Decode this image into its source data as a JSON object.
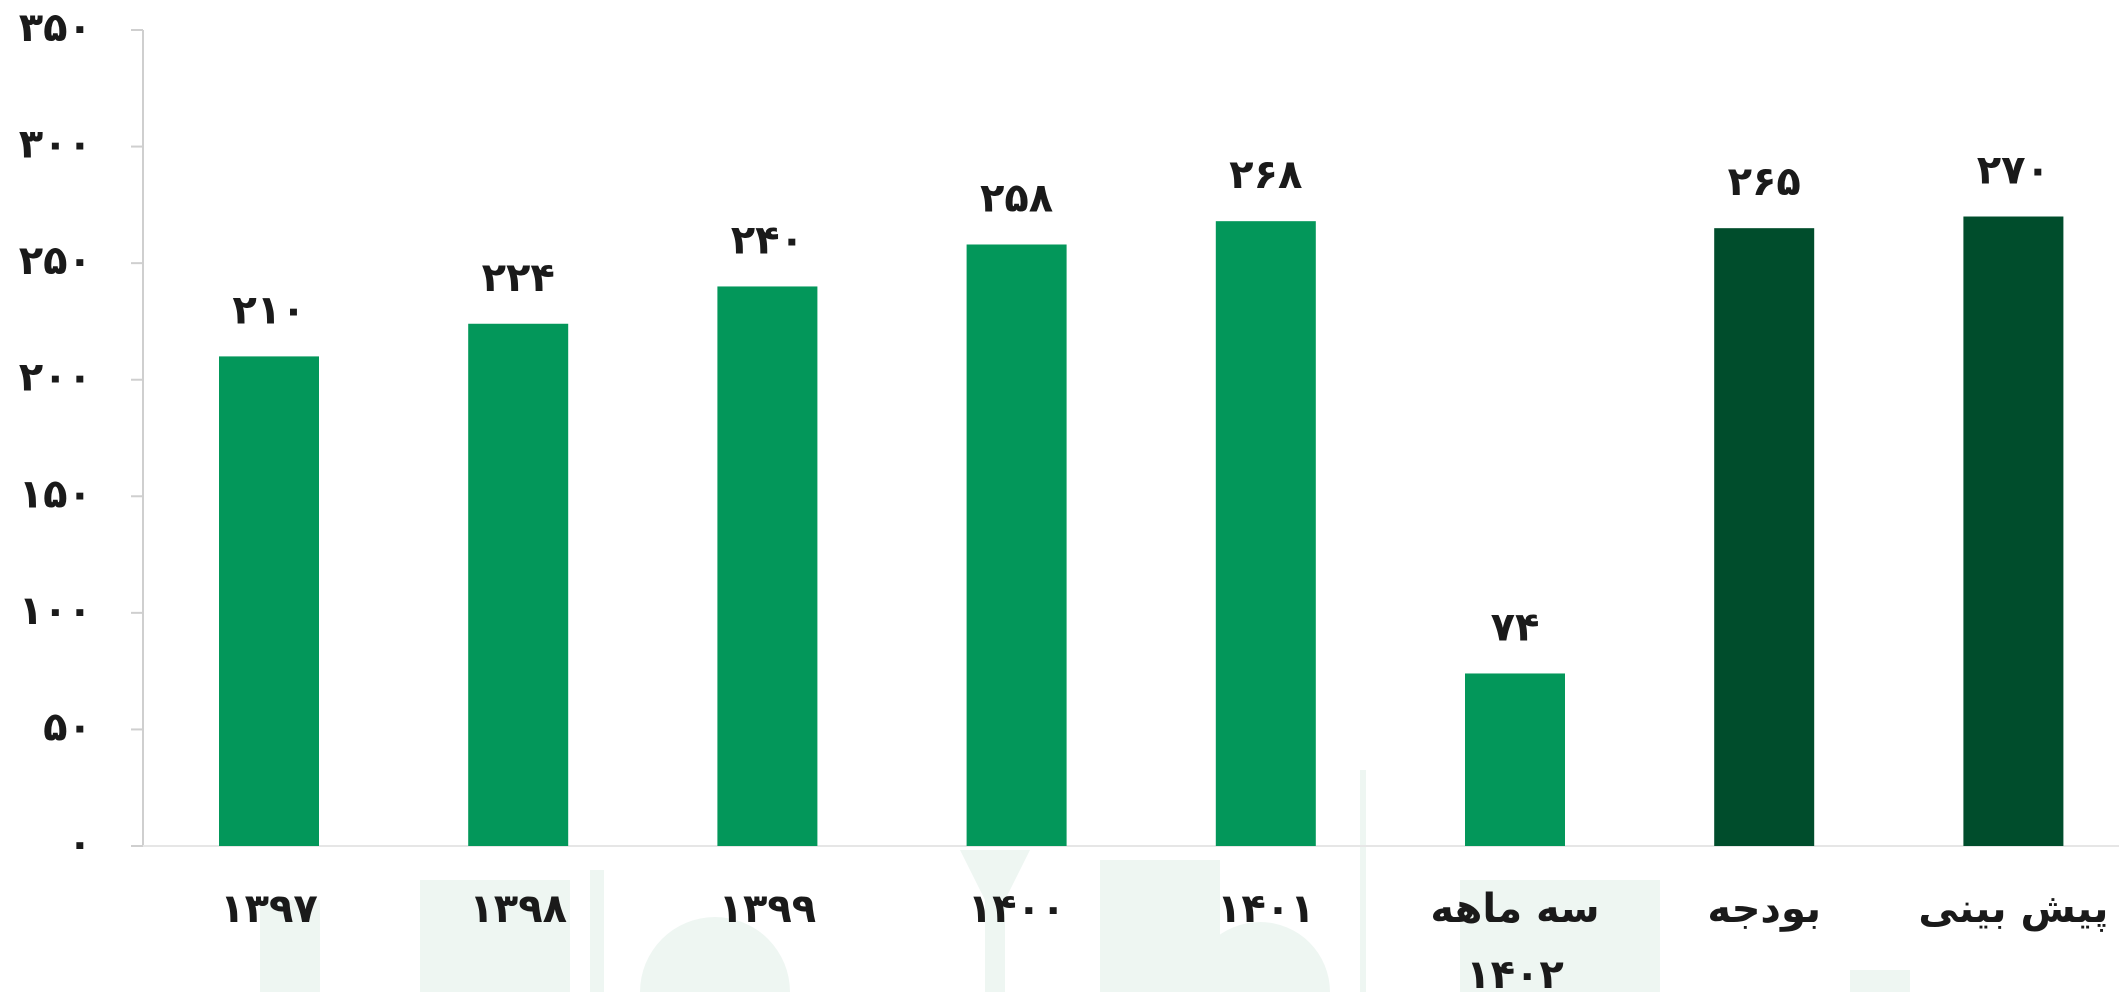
{
  "chart_data": {
    "type": "bar",
    "categories": [
      "۱۳۹۷",
      "۱۳۹۸",
      "۱۳۹۹",
      "۱۴۰۰",
      "۱۴۰۱",
      "سه ماهه ۱۴۰۲",
      "بودجه",
      "پیش بینی"
    ],
    "values": [
      210,
      224,
      240,
      258,
      268,
      74,
      265,
      270
    ],
    "value_labels": [
      "۲۱۰",
      "۲۲۴",
      "۲۴۰",
      "۲۵۸",
      "۲۶۸",
      "۷۴",
      "۲۶۵",
      "۲۷۰"
    ],
    "colors": [
      "#03975a",
      "#03975a",
      "#03975a",
      "#03975a",
      "#03975a",
      "#03975a",
      "#004d2c",
      "#004d2c"
    ],
    "ylim": [
      0,
      350
    ],
    "yticks": [
      {
        "value": 0,
        "label": "۰"
      },
      {
        "value": 50,
        "label": "۵۰"
      },
      {
        "value": 100,
        "label": "۱۰۰"
      },
      {
        "value": 150,
        "label": "۱۵۰"
      },
      {
        "value": 200,
        "label": "۲۰۰"
      },
      {
        "value": 250,
        "label": "۲۵۰"
      },
      {
        "value": 300,
        "label": "۳۰۰"
      },
      {
        "value": 350,
        "label": "۳۵۰"
      }
    ]
  }
}
